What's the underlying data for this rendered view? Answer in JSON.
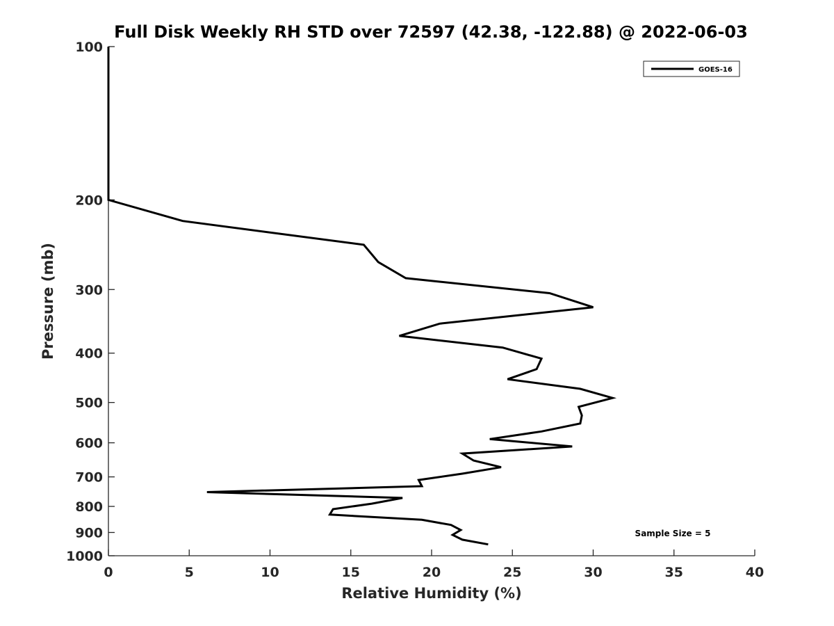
{
  "chart_data": {
    "type": "line",
    "title": "Full Disk Weekly RH STD over 72597 (42.38, -122.88) @ 2022-06-03",
    "xlabel": "Relative Humidity (%)",
    "ylabel": "Pressure (mb)",
    "xlim": [
      0,
      40
    ],
    "ylim": [
      100,
      1000
    ],
    "y_scale": "log",
    "y_reversed": true,
    "x_ticks": [
      "0",
      "5",
      "10",
      "15",
      "20",
      "25",
      "30",
      "35",
      "40"
    ],
    "y_ticks": [
      "100",
      "200",
      "300",
      "400",
      "500",
      "600",
      "700",
      "800",
      "900",
      "1000"
    ],
    "grid": false,
    "legend_position": "top-right",
    "series": [
      {
        "name": "GOES-16",
        "color": "#000000",
        "x": [
          0,
          0,
          0,
          0,
          0,
          0,
          4.6,
          15.8,
          16.7,
          18.4,
          27.3,
          30.0,
          20.5,
          18.0,
          24.4,
          26.8,
          26.5,
          24.7,
          29.2,
          31.2,
          29.1,
          29.3,
          29.2,
          26.8,
          23.6,
          28.7,
          21.9,
          22.6,
          24.3,
          21.9,
          19.2,
          19.4,
          6.1,
          18.2,
          16.3,
          13.9,
          13.7,
          19.4,
          21.2,
          21.8,
          21.3,
          21.9,
          23.5
        ],
        "y": [
          100,
          115,
          130,
          150,
          170,
          200,
          220,
          245,
          265,
          285,
          305,
          325,
          350,
          370,
          390,
          410,
          430,
          450,
          470,
          490,
          510,
          530,
          550,
          570,
          590,
          610,
          630,
          650,
          670,
          690,
          710,
          730,
          750,
          770,
          790,
          810,
          830,
          850,
          870,
          890,
          910,
          930,
          950
        ]
      }
    ],
    "annotations": [
      "Sample Size = 5"
    ]
  }
}
